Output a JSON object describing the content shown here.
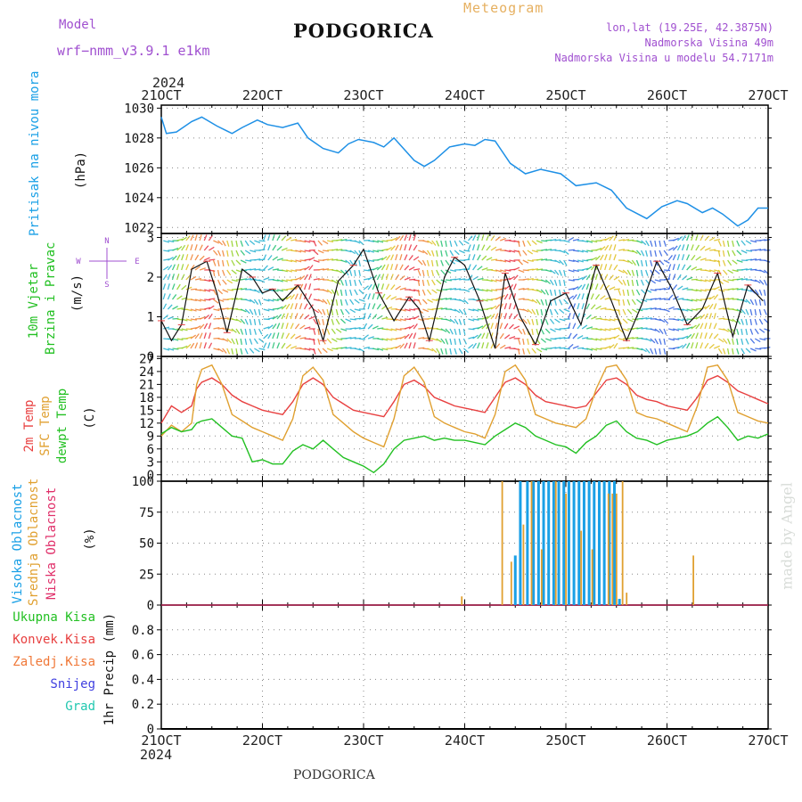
{
  "header": {
    "model_label": "Model",
    "model_value": "wrf−nmm_v3.9.1  e1km",
    "title": "PODGORICA",
    "meteogram": "Meteogram",
    "lonlat": "lon,lat (19.25E, 42.3875N)",
    "elevation": "Nadmorska Visina 49m",
    "model_elevation": "Nadmorska Visina u modelu 54.7171m",
    "footer_title": "PODGORICA",
    "watermark": "made by Angel"
  },
  "colors": {
    "pressure": "#1e90e6",
    "temp2m": "#e84040",
    "sfc": "#e0a030",
    "dewpt": "#22c022",
    "cloud_high": "#1aa0e6",
    "cloud_mid": "#e0a030",
    "cloud_low": "#e0306a",
    "model": "#a050d0",
    "grid": "#888888"
  },
  "chart_data": [
    {
      "type": "line",
      "title": "Pritisak na nivou mora",
      "ylabel": "(hPa)",
      "x_ticks": [
        "21OCT",
        "22OCT",
        "23OCT",
        "24OCT",
        "25OCT",
        "26OCT",
        "27OCT"
      ],
      "x_year": "2024",
      "ylim": [
        1021.6,
        1030.2
      ],
      "y_ticks": [
        "1022",
        "1024",
        "1026",
        "1028",
        "1030"
      ],
      "series": [
        {
          "name": "Pritisak na nivou mora",
          "x": [
            21.0,
            21.05,
            21.15,
            21.3,
            21.4,
            21.55,
            21.7,
            21.8,
            21.95,
            22.05,
            22.2,
            22.35,
            22.45,
            22.6,
            22.75,
            22.85,
            22.95,
            23.1,
            23.2,
            23.3,
            23.5,
            23.6,
            23.7,
            23.85,
            24.0,
            24.1,
            24.2,
            24.3,
            24.45,
            24.6,
            24.75,
            24.95,
            25.1,
            25.3,
            25.45,
            25.6,
            25.8,
            25.95,
            26.1,
            26.2,
            26.35,
            26.45,
            26.55,
            26.7,
            26.8,
            26.9,
            27.0
          ],
          "y": [
            1029.4,
            1028.3,
            1028.4,
            1029.1,
            1029.4,
            1028.8,
            1028.3,
            1028.7,
            1029.2,
            1028.9,
            1028.7,
            1029.0,
            1028.0,
            1027.3,
            1027.0,
            1027.6,
            1027.9,
            1027.7,
            1027.4,
            1028.0,
            1026.5,
            1026.1,
            1026.5,
            1027.4,
            1027.6,
            1027.5,
            1027.9,
            1027.8,
            1026.3,
            1025.6,
            1025.9,
            1025.6,
            1024.8,
            1025.0,
            1024.5,
            1023.3,
            1022.6,
            1023.4,
            1023.8,
            1023.6,
            1023.0,
            1023.3,
            1022.9,
            1022.1,
            1022.5,
            1023.3,
            1023.3
          ]
        }
      ]
    },
    {
      "type": "line",
      "title": "10m Vjetar Brzina i Pravac",
      "ylabel": "(m/s)",
      "compass": [
        "N",
        "W",
        "E",
        "S"
      ],
      "ylim": [
        0,
        3.1
      ],
      "y_ticks": [
        "0",
        "1",
        "2",
        "3"
      ],
      "series": [
        {
          "name": "10m Vjetar",
          "x": [
            21.0,
            21.1,
            21.2,
            21.3,
            21.45,
            21.55,
            21.65,
            21.8,
            21.9,
            22.0,
            22.1,
            22.2,
            22.35,
            22.5,
            22.6,
            22.75,
            22.9,
            23.0,
            23.15,
            23.3,
            23.45,
            23.55,
            23.65,
            23.8,
            23.9,
            24.0,
            24.15,
            24.3,
            24.4,
            24.55,
            24.7,
            24.85,
            25.0,
            25.15,
            25.3,
            25.45,
            25.6,
            25.75,
            25.9,
            26.05,
            26.2,
            26.35,
            26.5,
            26.65,
            26.8,
            26.95
          ],
          "y": [
            0.9,
            0.4,
            0.8,
            2.2,
            2.4,
            1.6,
            0.6,
            2.2,
            2.0,
            1.6,
            1.7,
            1.4,
            1.8,
            1.2,
            0.4,
            1.9,
            2.3,
            2.7,
            1.6,
            0.9,
            1.5,
            1.2,
            0.4,
            2.0,
            2.5,
            2.3,
            1.4,
            0.2,
            2.1,
            1.0,
            0.3,
            1.4,
            1.6,
            0.8,
            2.3,
            1.4,
            0.4,
            1.3,
            2.4,
            1.7,
            0.8,
            1.2,
            2.1,
            0.5,
            1.8,
            1.4
          ]
        }
      ]
    },
    {
      "type": "line",
      "title": "2m Temp, SFC Temp, dewpt Temp",
      "ylabel": "(C)",
      "ylim": [
        -1.5,
        27.5
      ],
      "y_ticks": [
        "0",
        "3",
        "6",
        "9",
        "12",
        "15",
        "18",
        "21",
        "24",
        "27"
      ],
      "x": [
        21.0,
        21.1,
        21.2,
        21.3,
        21.35,
        21.4,
        21.5,
        21.6,
        21.7,
        21.8,
        21.9,
        22.0,
        22.1,
        22.2,
        22.3,
        22.4,
        22.5,
        22.6,
        22.7,
        22.8,
        22.9,
        23.0,
        23.1,
        23.2,
        23.3,
        23.4,
        23.5,
        23.6,
        23.7,
        23.8,
        23.9,
        24.0,
        24.1,
        24.2,
        24.3,
        24.4,
        24.5,
        24.6,
        24.7,
        24.8,
        24.9,
        25.0,
        25.1,
        25.2,
        25.3,
        25.4,
        25.5,
        25.6,
        25.7,
        25.8,
        25.9,
        26.0,
        26.1,
        26.2,
        26.3,
        26.4,
        26.5,
        26.6,
        26.7,
        26.8,
        26.9,
        27.0
      ],
      "series": [
        {
          "name": "2m Temp",
          "values": [
            12.0,
            16.0,
            14.5,
            16.0,
            20.0,
            21.5,
            22.5,
            21.0,
            18.5,
            17.0,
            16.0,
            15.0,
            14.5,
            14.0,
            17.0,
            21.0,
            22.5,
            21.0,
            18.0,
            16.5,
            15.0,
            14.5,
            14.0,
            13.5,
            17.0,
            21.0,
            22.0,
            20.5,
            18.0,
            17.0,
            16.0,
            15.5,
            15.0,
            14.5,
            18.0,
            21.5,
            22.5,
            21.0,
            18.5,
            17.0,
            16.5,
            16.0,
            15.5,
            16.0,
            19.0,
            22.0,
            22.5,
            21.0,
            18.5,
            17.5,
            17.0,
            16.0,
            15.5,
            15.0,
            18.0,
            22.0,
            23.0,
            21.5,
            19.5,
            18.5,
            17.5,
            16.5
          ]
        },
        {
          "name": "SFC Temp",
          "values": [
            9.0,
            11.5,
            10.0,
            12.0,
            21.0,
            24.5,
            25.5,
            21.0,
            14.0,
            12.5,
            11.0,
            10.0,
            9.0,
            8.0,
            13.0,
            23.0,
            25.0,
            22.0,
            14.0,
            12.0,
            10.0,
            8.5,
            7.5,
            6.5,
            13.0,
            23.0,
            25.0,
            21.5,
            13.5,
            12.0,
            11.0,
            10.0,
            9.5,
            8.5,
            14.0,
            24.0,
            25.5,
            22.0,
            14.0,
            13.0,
            12.0,
            11.5,
            11.0,
            13.0,
            20.0,
            25.0,
            25.5,
            22.0,
            14.5,
            13.5,
            13.0,
            12.0,
            11.0,
            10.0,
            16.0,
            25.0,
            25.5,
            22.0,
            14.5,
            13.5,
            12.5,
            12.0
          ]
        },
        {
          "name": "dewpt Temp",
          "values": [
            9.5,
            11.0,
            10.0,
            10.5,
            12.0,
            12.5,
            13.0,
            11.0,
            9.0,
            8.5,
            3.0,
            3.5,
            2.5,
            2.5,
            5.5,
            7.0,
            6.0,
            8.0,
            6.0,
            4.0,
            3.0,
            2.0,
            0.5,
            2.5,
            6.0,
            8.0,
            8.5,
            9.0,
            8.0,
            8.5,
            8.0,
            8.0,
            7.5,
            7.0,
            9.0,
            10.5,
            12.0,
            11.0,
            9.0,
            8.0,
            7.0,
            6.5,
            5.0,
            7.5,
            9.0,
            11.5,
            12.5,
            10.0,
            8.5,
            8.0,
            7.0,
            8.0,
            8.5,
            9.0,
            10.0,
            12.0,
            13.5,
            11.0,
            8.0,
            9.0,
            8.5,
            9.5
          ]
        }
      ]
    },
    {
      "type": "bar",
      "title": "Visoka Oblacnost, Srednja Oblacnost, Niska Oblacnost",
      "ylabel": "(%)",
      "ylim": [
        0,
        100
      ],
      "y_ticks": [
        "0",
        "25",
        "50",
        "75",
        "100"
      ],
      "series": [
        {
          "name": "Visoka Oblacnost",
          "x": [
            24.5,
            24.55,
            24.62,
            24.68,
            24.73,
            24.78,
            24.83,
            24.88,
            24.93,
            24.98,
            25.03,
            25.08,
            25.13,
            25.18,
            25.23,
            25.28,
            25.33,
            25.38,
            25.43,
            25.48,
            25.53
          ],
          "y": [
            40,
            100,
            100,
            100,
            100,
            100,
            100,
            100,
            100,
            100,
            100,
            100,
            100,
            100,
            100,
            100,
            100,
            100,
            100,
            100,
            5
          ]
        },
        {
          "name": "Srednja Oblacnost",
          "x": [
            23.97,
            24.37,
            24.46,
            24.58,
            24.66,
            24.76,
            24.9,
            25.0,
            25.15,
            25.26,
            25.42,
            25.46,
            25.5,
            25.56,
            25.6,
            26.26
          ],
          "y": [
            7,
            100,
            35,
            65,
            100,
            45,
            100,
            90,
            60,
            45,
            90,
            90,
            90,
            100,
            10,
            40
          ]
        },
        {
          "name": "Niska Oblacnost",
          "x": [],
          "y": []
        }
      ]
    },
    {
      "type": "bar",
      "title": "1hr Precip",
      "ylabel": "1hr Precip (mm)",
      "ylim": [
        0,
        1.0
      ],
      "y_ticks": [
        "0",
        "0.2",
        "0.4",
        "0.6",
        "0.8"
      ],
      "legend": [
        "Ukupna Kisa",
        "Konvek.Kisa",
        "Zaledj.Kisa",
        "Snijeg",
        "Grad"
      ],
      "series": []
    }
  ]
}
